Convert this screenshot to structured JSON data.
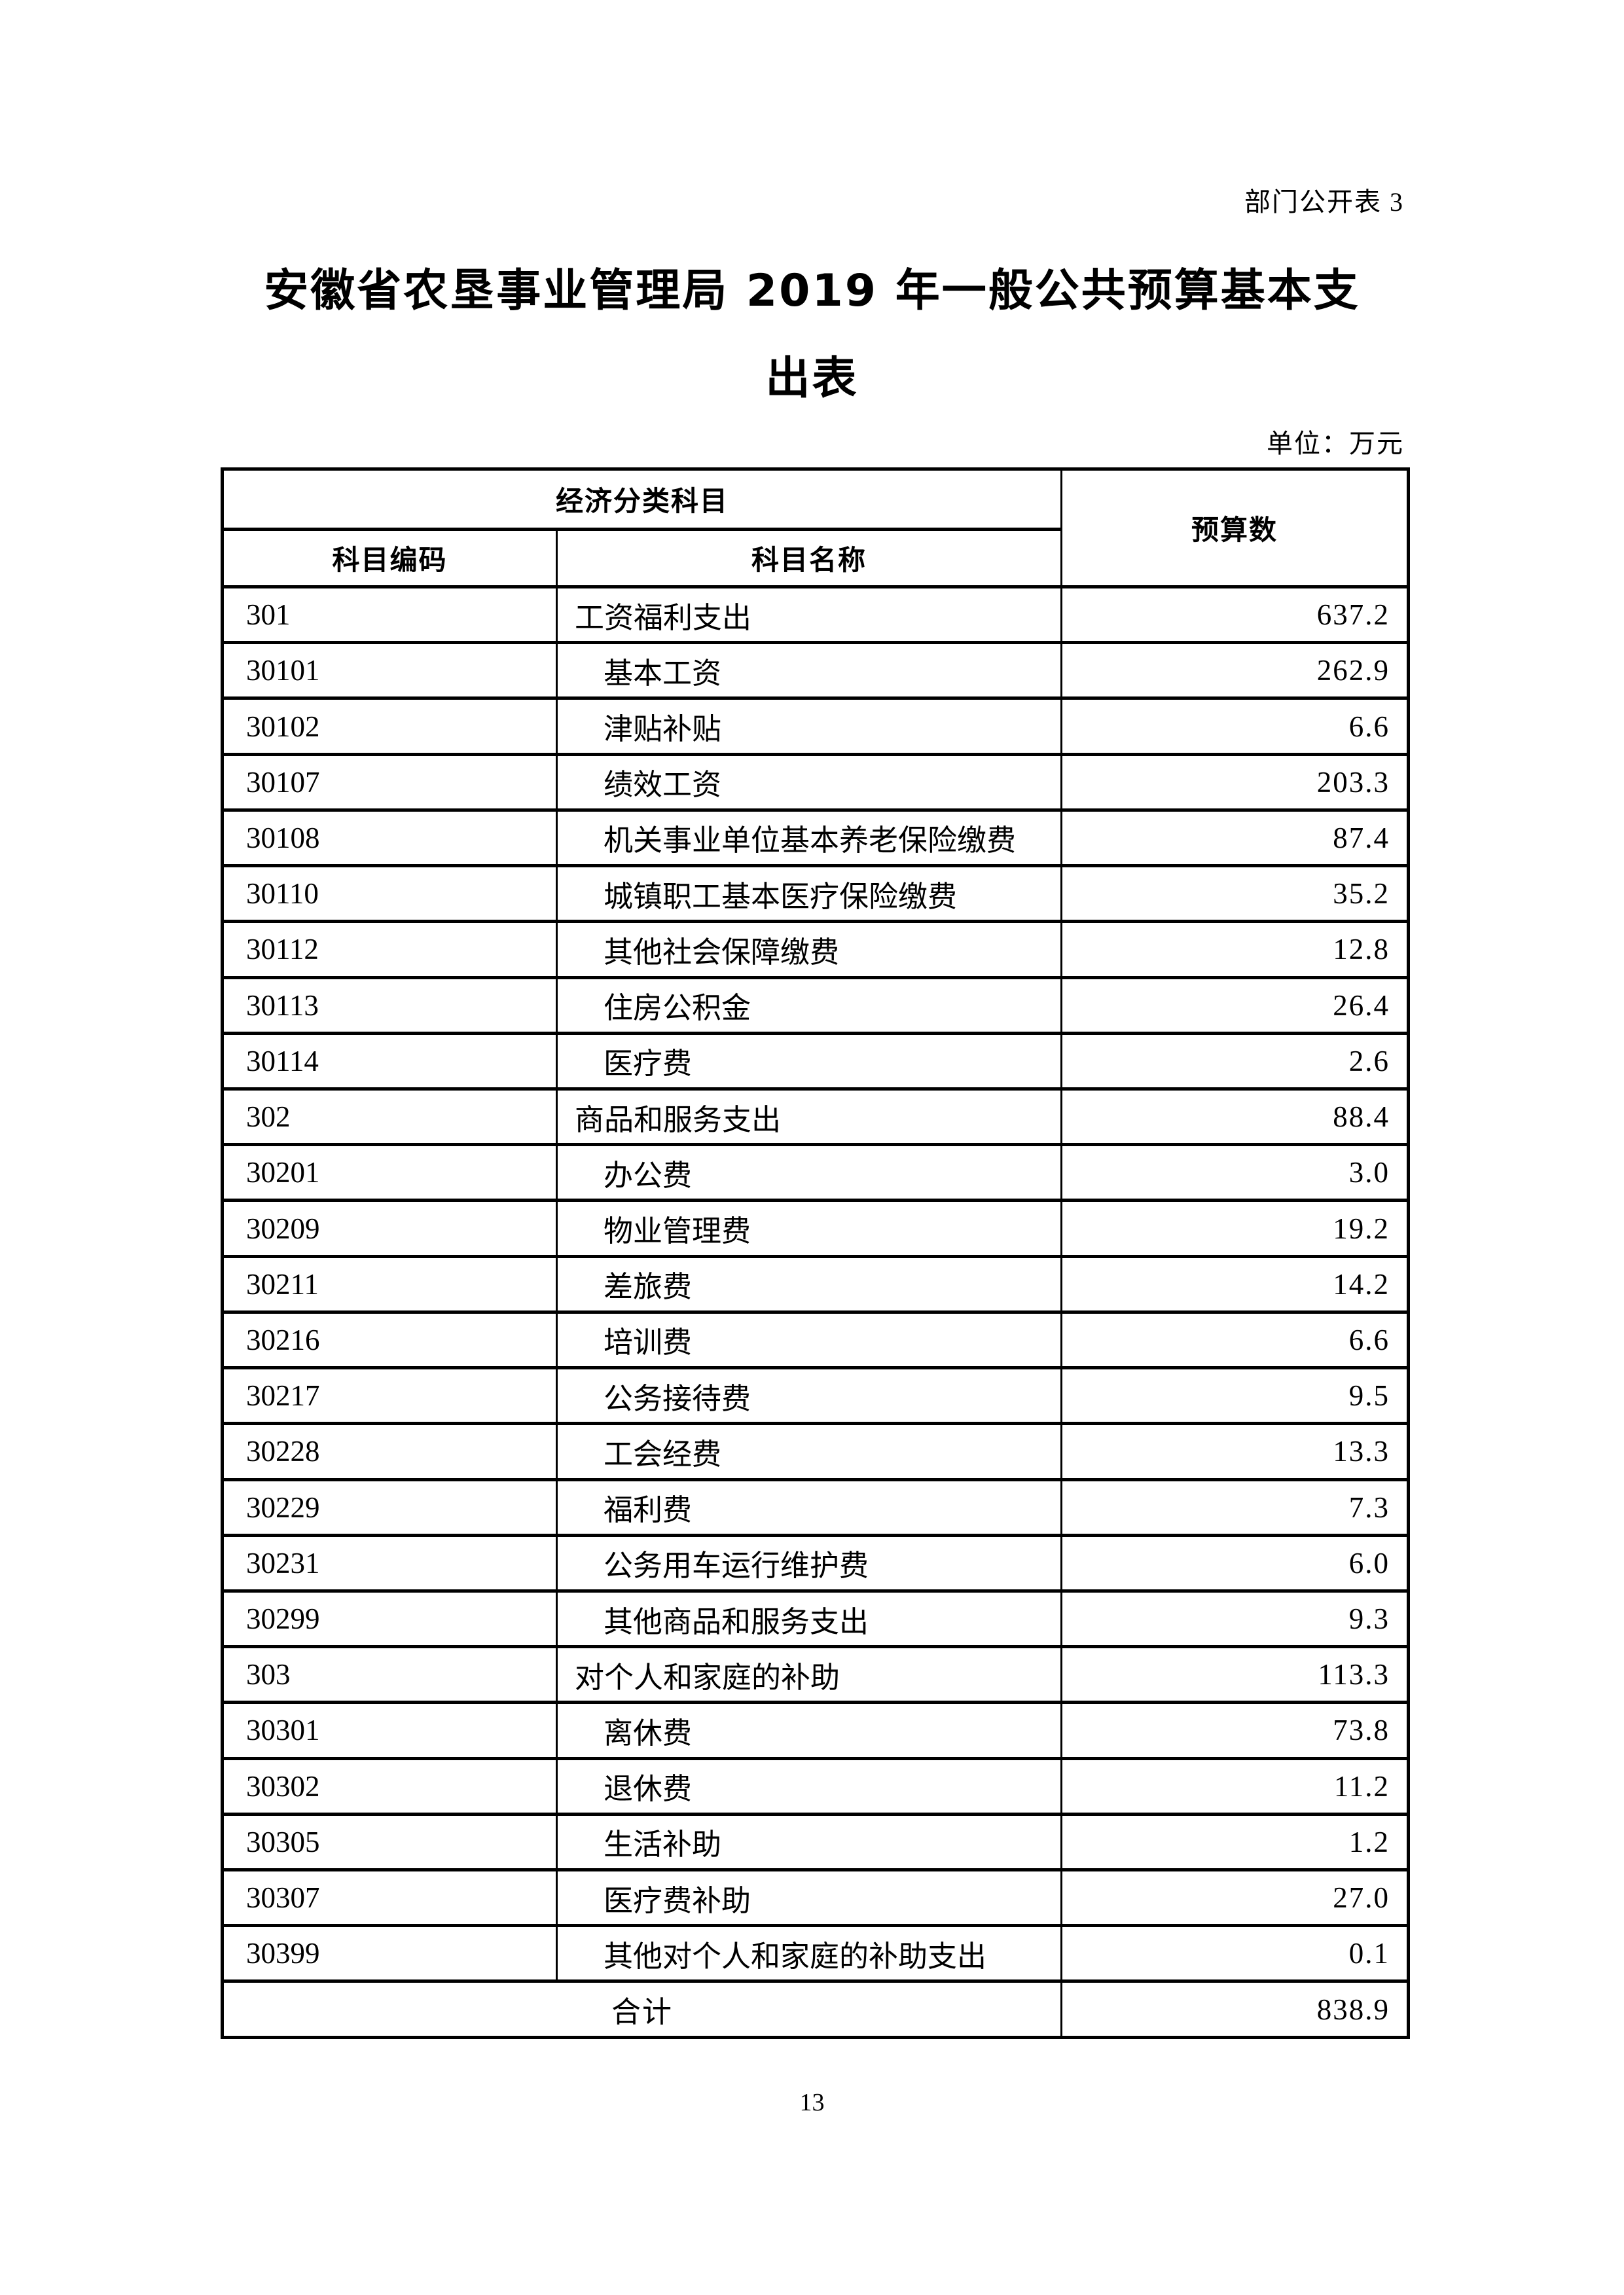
{
  "header": {
    "corner_label": "部门公开表 3"
  },
  "title": {
    "line1": "安徽省农垦事业管理局 2019 年一般公共预算基本支",
    "line2": "出表"
  },
  "table": {
    "unit_label": "单位：万元",
    "columns": {
      "group": "经济分类科目",
      "code": "科目编码",
      "name": "科目名称",
      "budget": "预算数"
    },
    "rows": [
      {
        "code": "301",
        "name": "工资福利支出",
        "value": "637.2",
        "indent": false
      },
      {
        "code": "30101",
        "name": "基本工资",
        "value": "262.9",
        "indent": true
      },
      {
        "code": "30102",
        "name": "津贴补贴",
        "value": "6.6",
        "indent": true
      },
      {
        "code": "30107",
        "name": "绩效工资",
        "value": "203.3",
        "indent": true
      },
      {
        "code": "30108",
        "name": "机关事业单位基本养老保险缴费",
        "value": "87.4",
        "indent": true
      },
      {
        "code": "30110",
        "name": "城镇职工基本医疗保险缴费",
        "value": "35.2",
        "indent": true
      },
      {
        "code": "30112",
        "name": "其他社会保障缴费",
        "value": "12.8",
        "indent": true
      },
      {
        "code": "30113",
        "name": "住房公积金",
        "value": "26.4",
        "indent": true
      },
      {
        "code": "30114",
        "name": "医疗费",
        "value": "2.6",
        "indent": true
      },
      {
        "code": "302",
        "name": "商品和服务支出",
        "value": "88.4",
        "indent": false
      },
      {
        "code": "30201",
        "name": "办公费",
        "value": "3.0",
        "indent": true
      },
      {
        "code": "30209",
        "name": "物业管理费",
        "value": "19.2",
        "indent": true
      },
      {
        "code": "30211",
        "name": "差旅费",
        "value": "14.2",
        "indent": true
      },
      {
        "code": "30216",
        "name": "培训费",
        "value": "6.6",
        "indent": true
      },
      {
        "code": "30217",
        "name": "公务接待费",
        "value": "9.5",
        "indent": true
      },
      {
        "code": "30228",
        "name": "工会经费",
        "value": "13.3",
        "indent": true
      },
      {
        "code": "30229",
        "name": "福利费",
        "value": "7.3",
        "indent": true
      },
      {
        "code": "30231",
        "name": "公务用车运行维护费",
        "value": "6.0",
        "indent": true
      },
      {
        "code": "30299",
        "name": "其他商品和服务支出",
        "value": "9.3",
        "indent": true
      },
      {
        "code": "303",
        "name": "对个人和家庭的补助",
        "value": "113.3",
        "indent": false
      },
      {
        "code": "30301",
        "name": "离休费",
        "value": "73.8",
        "indent": true
      },
      {
        "code": "30302",
        "name": "退休费",
        "value": "11.2",
        "indent": true
      },
      {
        "code": "30305",
        "name": "生活补助",
        "value": "1.2",
        "indent": true
      },
      {
        "code": "30307",
        "name": "医疗费补助",
        "value": "27.0",
        "indent": true
      },
      {
        "code": "30399",
        "name": "其他对个人和家庭的补助支出",
        "value": "0.1",
        "indent": true
      }
    ],
    "total": {
      "label": "合计",
      "value": "838.9"
    }
  },
  "footer": {
    "page_number": "13"
  }
}
